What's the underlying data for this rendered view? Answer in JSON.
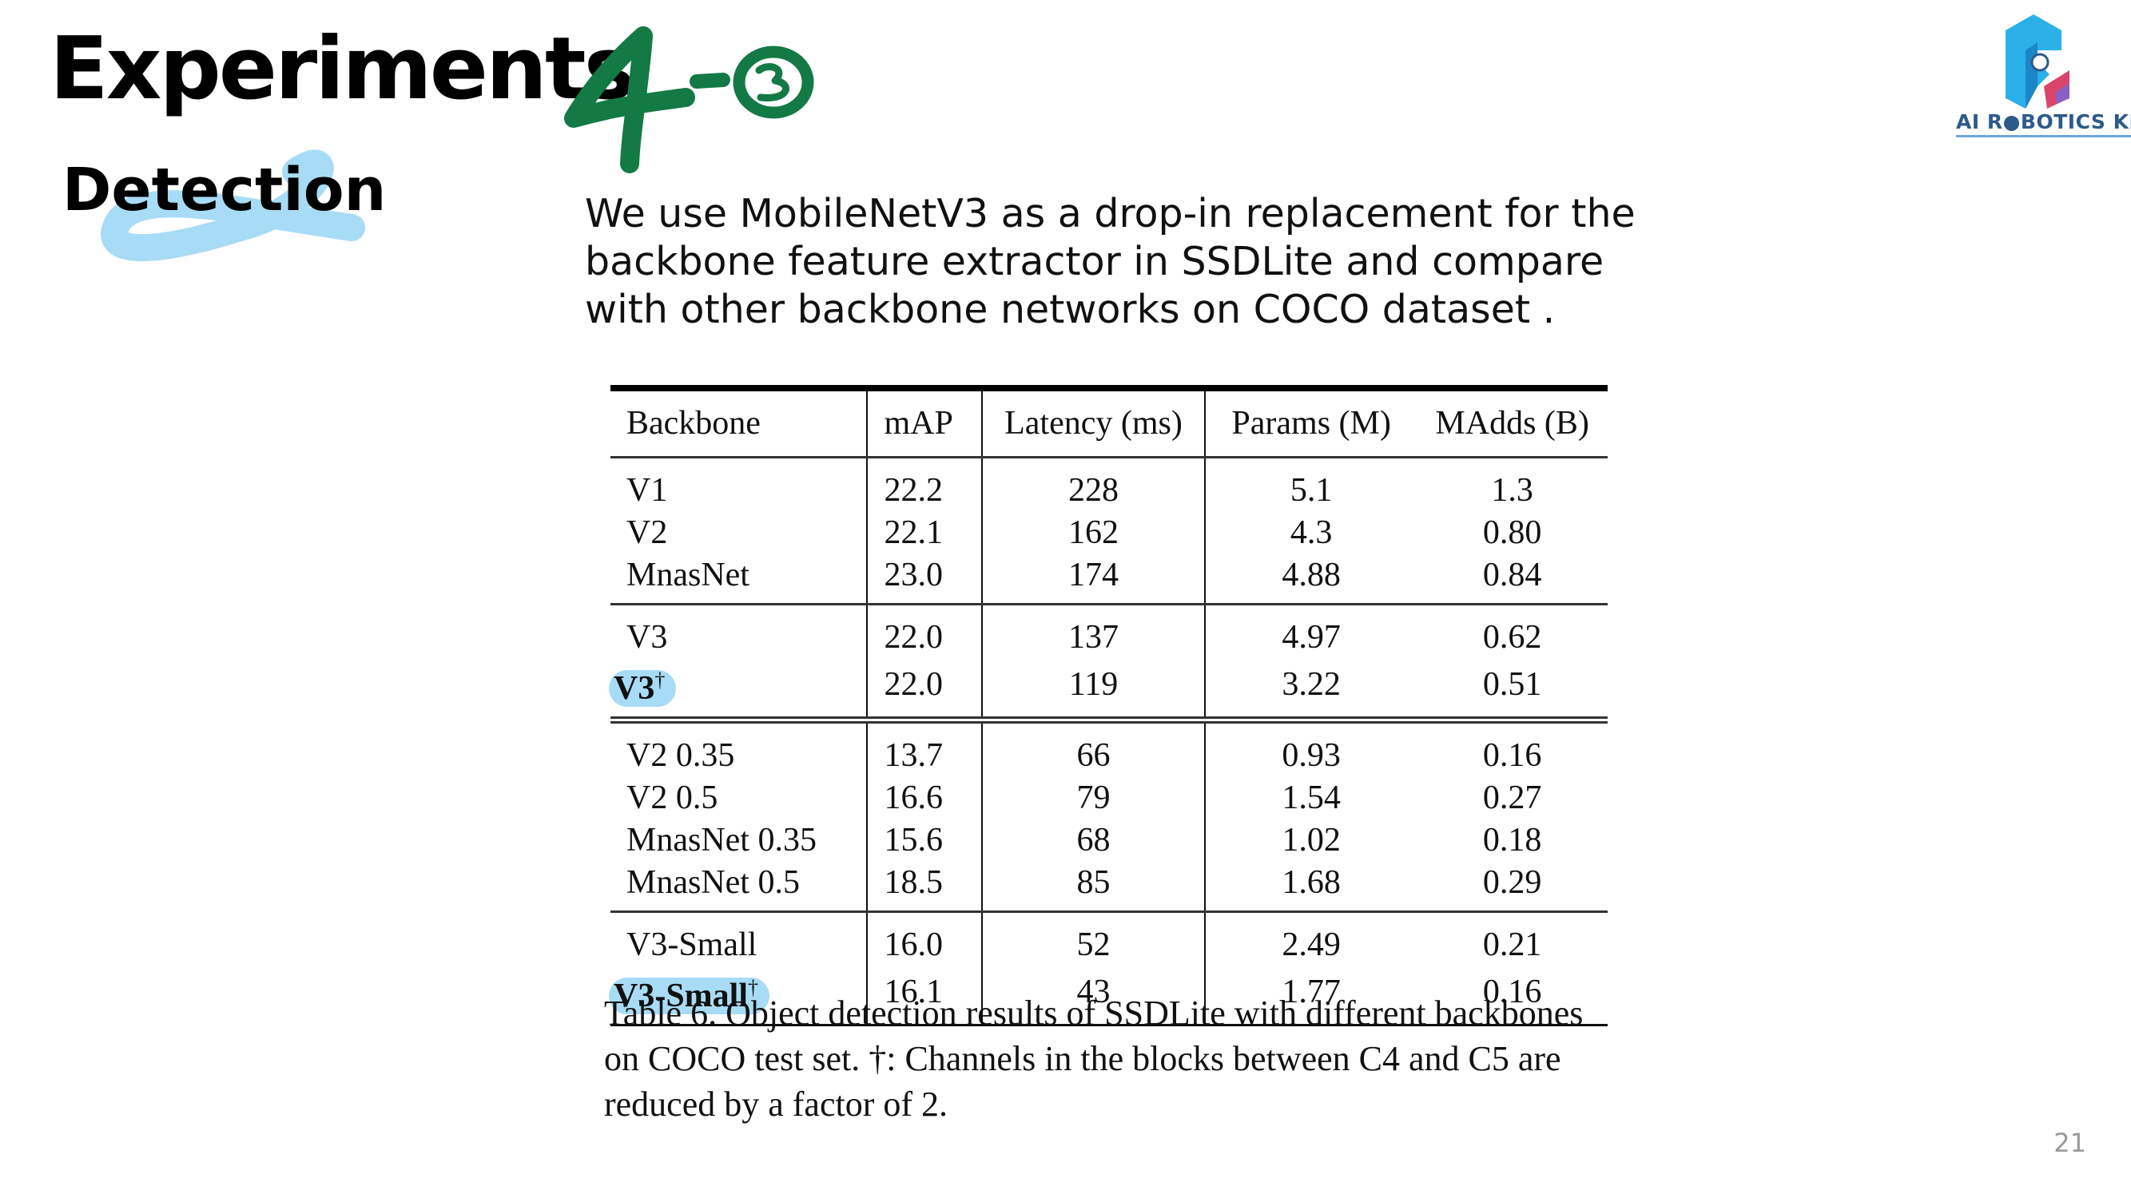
{
  "slide": {
    "title": "Experiments",
    "handwritten_annotation": "4-③",
    "subtitle": "Detection",
    "intro": "We use MobileNetV3 as a drop-in replacement for the backbone feature extractor in SSDLite and compare with other backbone networks on COCO dataset .",
    "logo_text": "AI R●BOTICS KR",
    "page_number": "21"
  },
  "table": {
    "headers": [
      "Backbone",
      "mAP",
      "Latency (ms)",
      "Params (M)",
      "MAdds (B)"
    ],
    "dagger": "†",
    "groups": [
      {
        "rows": [
          {
            "backbone": "V1",
            "map": "22.2",
            "latency": "228",
            "params": "5.1",
            "madds": "1.3"
          },
          {
            "backbone": "V2",
            "map": "22.1",
            "latency": "162",
            "params": "4.3",
            "madds": "0.80"
          },
          {
            "backbone": "MnasNet",
            "map": "23.0",
            "latency": "174",
            "params": "4.88",
            "madds": "0.84"
          }
        ]
      },
      {
        "rows": [
          {
            "backbone": "V3",
            "map": "22.0",
            "latency": "137",
            "params": "4.97",
            "madds": "0.62"
          },
          {
            "backbone": "V3",
            "map": "22.0",
            "latency": "119",
            "params": "3.22",
            "madds": "0.51"
          }
        ]
      },
      {
        "rows": [
          {
            "backbone": "V2 0.35",
            "map": "13.7",
            "latency": "66",
            "params": "0.93",
            "madds": "0.16"
          },
          {
            "backbone": "V2 0.5",
            "map": "16.6",
            "latency": "79",
            "params": "1.54",
            "madds": "0.27"
          },
          {
            "backbone": "MnasNet 0.35",
            "map": "15.6",
            "latency": "68",
            "params": "1.02",
            "madds": "0.18"
          },
          {
            "backbone": "MnasNet 0.5",
            "map": "18.5",
            "latency": "85",
            "params": "1.68",
            "madds": "0.29"
          }
        ]
      },
      {
        "rows": [
          {
            "backbone": "V3-Small",
            "map": "16.0",
            "latency": "52",
            "params": "2.49",
            "madds": "0.21"
          },
          {
            "backbone": "V3-Small",
            "map": "16.1",
            "latency": "43",
            "params": "1.77",
            "madds": "0.16"
          }
        ]
      }
    ],
    "caption": "Table 6. Object detection results of SSDLite with different backbones on COCO test set. †: Channels in the blocks between C4 and C5 are reduced by a factor of 2."
  },
  "colors": {
    "annotation_green": "#137a45",
    "highlight_blue": "#a8dcf6",
    "logo_cyan": "#2bb0e8",
    "logo_navy": "#2e5a8a",
    "logo_pink": "#d9456a"
  }
}
